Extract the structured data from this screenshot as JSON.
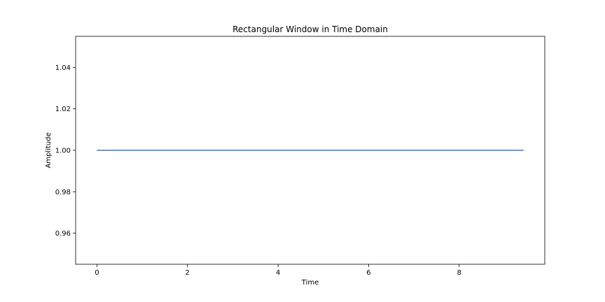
{
  "chart_data": {
    "type": "line",
    "title": "Rectangular Window in Time Domain",
    "xlabel": "Time",
    "ylabel": "Amplitude",
    "xlim": [
      -0.47,
      9.89
    ],
    "ylim": [
      0.945,
      1.055
    ],
    "xticks": [
      0,
      2,
      4,
      6,
      8
    ],
    "xtick_labels": [
      "0",
      "2",
      "4",
      "6",
      "8"
    ],
    "yticks": [
      0.96,
      0.98,
      1.0,
      1.02,
      1.04
    ],
    "ytick_labels": [
      "0.96",
      "0.98",
      "1.00",
      "1.02",
      "1.04"
    ],
    "grid": false,
    "series": [
      {
        "color": "#4c72b0",
        "x": [
          0,
          9.42
        ],
        "y": [
          1.0,
          1.0
        ]
      }
    ]
  }
}
